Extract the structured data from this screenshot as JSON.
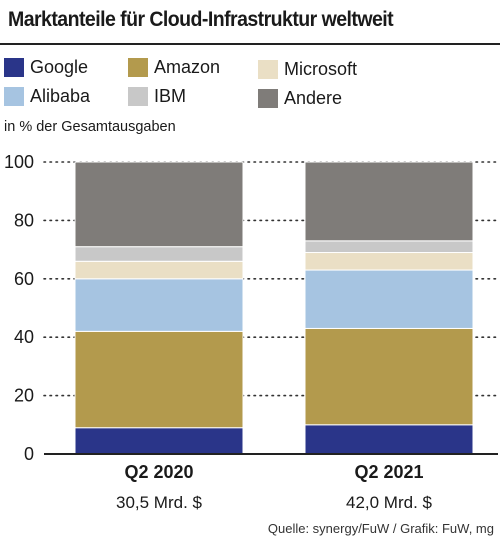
{
  "title": "Marktanteile für Cloud-Infrastruktur weltweit",
  "source": "Quelle: synergy/FuW / Grafik: FuW, mg",
  "colors": {
    "Google": "#2a3589",
    "Amazon": "#b39a4d",
    "Microsoft": "#eadfc5",
    "Alibaba": "#a6c4e1",
    "IBM": "#c8c8c8",
    "Andere": "#7f7c79"
  },
  "legend": [
    "Google",
    "Amazon",
    "Microsoft",
    "Alibaba",
    "IBM",
    "Andere"
  ],
  "chart_data": {
    "type": "bar",
    "stacked": true,
    "title": "Marktanteile für Cloud-Infrastruktur weltweit",
    "ylabel": "in % der Gesamtausgaben",
    "ylim": [
      0,
      100
    ],
    "yticks": [
      0,
      20,
      40,
      60,
      80,
      100
    ],
    "grid": "dotted",
    "legend_position": "top",
    "categories": [
      "Q2 2020",
      "Q2 2021"
    ],
    "category_sublabels": [
      "30,5 Mrd. $",
      "42,0 Mrd. $"
    ],
    "series": [
      {
        "name": "Google",
        "values": [
          9,
          10
        ]
      },
      {
        "name": "Amazon",
        "values": [
          33,
          33
        ]
      },
      {
        "name": "Alibaba",
        "values": [
          18,
          20
        ]
      },
      {
        "name": "Microsoft",
        "values": [
          6,
          6
        ]
      },
      {
        "name": "IBM",
        "values": [
          5,
          4
        ]
      },
      {
        "name": "Andere",
        "values": [
          29,
          27
        ]
      }
    ]
  }
}
